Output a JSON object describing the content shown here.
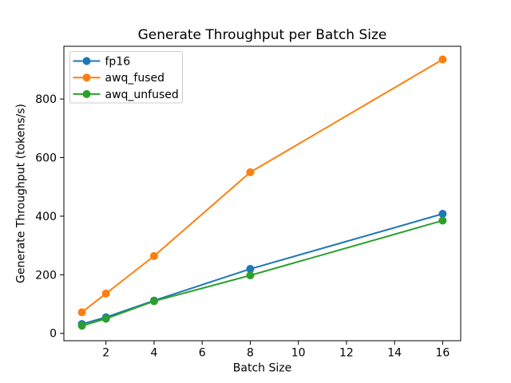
{
  "figure": {
    "background": "#ffffff",
    "frame_color": "#000000"
  },
  "chart_data": {
    "type": "line",
    "title": "Generate Throughput per Batch Size",
    "xlabel": "Batch Size",
    "ylabel": "Generate Throughput (tokens/s)",
    "x": [
      1,
      2,
      4,
      8,
      16
    ],
    "series": [
      {
        "name": "fp16",
        "color": "#1f77b4",
        "values": [
          32,
          55,
          112,
          220,
          408
        ]
      },
      {
        "name": "awq_fused",
        "color": "#ff7f0e",
        "values": [
          72,
          136,
          264,
          550,
          935
        ]
      },
      {
        "name": "awq_unfused",
        "color": "#2ca02c",
        "values": [
          26,
          50,
          110,
          198,
          385
        ]
      }
    ],
    "xticks": [
      2,
      4,
      6,
      8,
      10,
      12,
      14,
      16
    ],
    "yticks": [
      0,
      200,
      400,
      600,
      800
    ],
    "xlim": [
      0.25,
      16.75
    ],
    "ylim": [
      -25,
      980
    ],
    "grid": false,
    "marker": "circle",
    "legend_position": "upper left",
    "legend_border_color": "#cccccc"
  }
}
